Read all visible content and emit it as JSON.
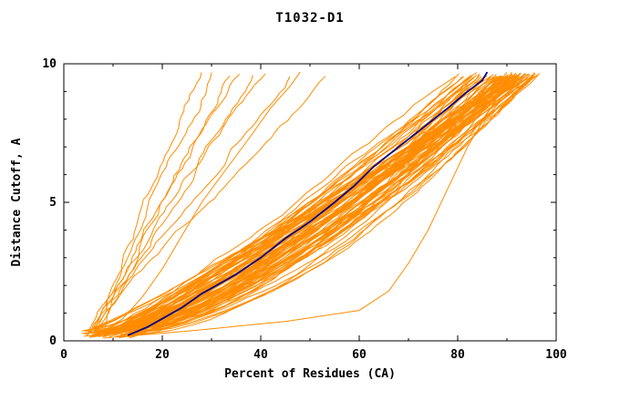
{
  "chart_data": {
    "type": "line",
    "title": "T1032-D1",
    "xlabel": "Percent of Residues (CA)",
    "ylabel": "Distance Cutoff, A",
    "xlim": [
      0,
      100
    ],
    "ylim": [
      0,
      10
    ],
    "xticks": {
      "major": [
        0,
        20,
        40,
        60,
        80,
        100
      ],
      "minor_step": 10
    },
    "yticks": {
      "major": [
        0,
        5,
        10
      ],
      "minor_step": 1
    },
    "grid": false,
    "legend": "none",
    "frame_color": "#000000",
    "ensemble_color": "#FF8C00",
    "highlight_color": "#00008B",
    "highlight_series": {
      "name": "selected-model",
      "points": [
        [
          13,
          0.2
        ],
        [
          17,
          0.5
        ],
        [
          20,
          0.8
        ],
        [
          24,
          1.2
        ],
        [
          28,
          1.7
        ],
        [
          31,
          2.0
        ],
        [
          35,
          2.4
        ],
        [
          40,
          3.0
        ],
        [
          45,
          3.7
        ],
        [
          50,
          4.3
        ],
        [
          55,
          5.0
        ],
        [
          59,
          5.6
        ],
        [
          63,
          6.3
        ],
        [
          68,
          7.0
        ],
        [
          73,
          7.7
        ],
        [
          78,
          8.4
        ],
        [
          82,
          9.0
        ],
        [
          85,
          9.4
        ],
        [
          86,
          9.7
        ]
      ]
    },
    "ensemble": {
      "description": "dense band of predicted-model cumulative curves",
      "count": 85,
      "start_y_range": [
        0.1,
        0.4
      ],
      "end_y": 9.7,
      "x_bottom_range": [
        4,
        14
      ],
      "x_top_range": [
        78,
        97
      ],
      "x_top_bias": 0.45,
      "shape_exponent_range": [
        0.55,
        0.95
      ],
      "jitter": 0.9,
      "seed": 1234
    },
    "outliers": {
      "description": "poor models reaching the top between 28 and 55 percent",
      "x_tops": [
        28,
        31,
        34,
        36,
        39,
        41,
        46,
        55
      ],
      "x_bottom_range": [
        4,
        9
      ],
      "shape_exponent_range": [
        0.95,
        1.3
      ],
      "seed": 77
    },
    "extra_curves": [
      {
        "points": [
          [
            8,
            0.1
          ],
          [
            25,
            0.35
          ],
          [
            45,
            0.7
          ],
          [
            60,
            1.1
          ],
          [
            66,
            1.8
          ],
          [
            70,
            2.8
          ],
          [
            74,
            4.0
          ],
          [
            78,
            5.5
          ],
          [
            82,
            7.0
          ],
          [
            87,
            8.5
          ],
          [
            91,
            9.7
          ]
        ]
      },
      {
        "points": [
          [
            6,
            0.15
          ],
          [
            12,
            0.8
          ],
          [
            16,
            1.6
          ],
          [
            20,
            2.6
          ],
          [
            24,
            3.8
          ],
          [
            28,
            5.0
          ],
          [
            33,
            6.2
          ],
          [
            38,
            7.4
          ],
          [
            42,
            8.4
          ],
          [
            46,
            9.2
          ],
          [
            48,
            9.7
          ]
        ]
      }
    ]
  }
}
